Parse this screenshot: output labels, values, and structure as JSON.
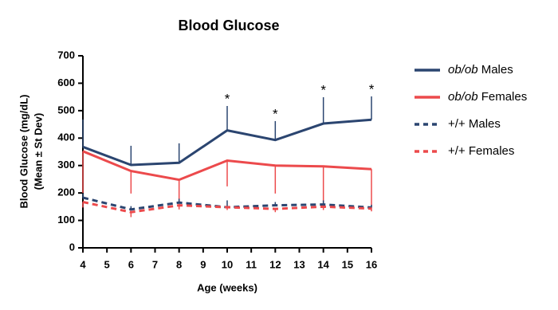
{
  "chart_data": {
    "type": "line",
    "title": "Blood Glucose",
    "x_label": "Age (weeks)",
    "y_label": [
      "Blood Glucose (mg/dL)",
      "(Mean ± St Dev)"
    ],
    "x": [
      4,
      6,
      8,
      10,
      12,
      14,
      16
    ],
    "xlim": [
      4,
      16
    ],
    "xticks": [
      4,
      5,
      6,
      7,
      8,
      9,
      10,
      11,
      12,
      13,
      14,
      15,
      16
    ],
    "ylim": [
      0,
      700
    ],
    "yticks": [
      0,
      100,
      200,
      300,
      400,
      500,
      600,
      700
    ],
    "series": [
      {
        "name": "ob/ob Males",
        "color": "#2b4570",
        "dashed": false,
        "error_direction": "up",
        "values": [
          368,
          302,
          310,
          428,
          393,
          453,
          467
        ],
        "errors": [
          100,
          70,
          71,
          89,
          69,
          96,
          85
        ]
      },
      {
        "name": "ob/ob Females",
        "color": "#ec4a4c",
        "dashed": false,
        "error_direction": "down",
        "values": [
          352,
          280,
          248,
          318,
          300,
          297,
          287
        ],
        "errors": [
          152,
          82,
          90,
          94,
          102,
          143,
          145
        ]
      },
      {
        "name": "+/+ Males",
        "color": "#2b4570",
        "dashed": true,
        "error_direction": "up",
        "values": [
          183,
          140,
          165,
          148,
          155,
          158,
          147
        ],
        "errors": [
          15,
          12,
          14,
          25,
          12,
          15,
          10
        ]
      },
      {
        "name": "+/+ Females",
        "color": "#ec4a4c",
        "dashed": true,
        "error_direction": "down",
        "values": [
          167,
          130,
          155,
          148,
          142,
          150,
          143
        ],
        "errors": [
          20,
          18,
          15,
          10,
          12,
          12,
          10
        ]
      }
    ],
    "annotations": [
      {
        "x": 10,
        "text": "*"
      },
      {
        "x": 12,
        "text": "*"
      },
      {
        "x": 14,
        "text": "*"
      },
      {
        "x": 16,
        "text": "*"
      }
    ]
  }
}
